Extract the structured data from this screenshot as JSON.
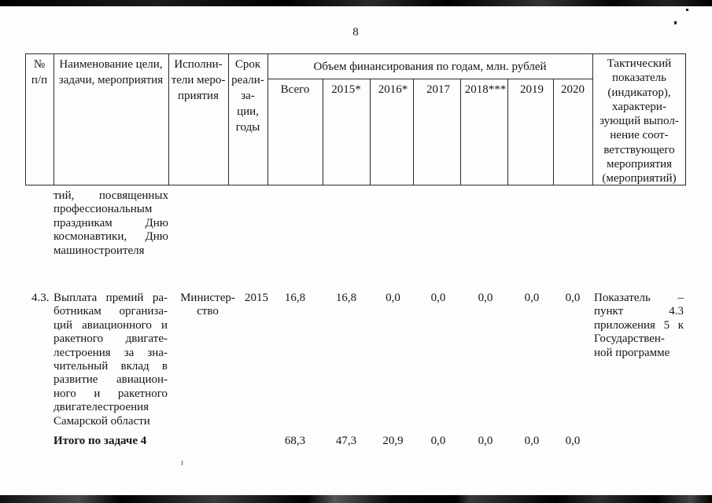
{
  "page": {
    "number": "8"
  },
  "table": {
    "header": {
      "num": "№\nп/п",
      "name": "Наименование цели,\nзадачи, мероприятия",
      "executor": "Исполни-\nтели меро-\nприятия",
      "term": "Срок\nреали-\nза-\nции,\nгоды",
      "funding_title": "Объем финансирования по годам, млн. рублей",
      "years": [
        "Всего",
        "2015*",
        "2016*",
        "2017",
        "2018***",
        "2019",
        "2020"
      ],
      "indicator": "Тактический\nпоказатель\n(индикатор),\nхарактери-\nзующий выпол-\nнение соот-\nветствующего\nмероприятия\n(мероприятий)"
    },
    "continuation": {
      "lines": [
        "тий, посвященных",
        "профессиональным",
        "праздникам Дню",
        "космонавтики, Дню",
        "машиностроителя"
      ]
    },
    "row_4_3": {
      "num": "4.3.",
      "name_lines": [
        "Выплата премий ра-",
        "ботникам организа-",
        "ций авиационного и",
        "ракетного двигате-",
        "лестроения за зна-",
        "чительный вклад в",
        "развитие авиацион-",
        "ного и ракетного",
        "двигателестроения",
        "Самарской области"
      ],
      "executor": "Министер-\nство",
      "term": "2015",
      "values": [
        "16,8",
        "16,8",
        "0,0",
        "0,0",
        "0,0",
        "0,0",
        "0,0"
      ],
      "indicator_lines": [
        "Показатель –",
        "пункт 4.3",
        "приложения 5 к",
        "Государствен-",
        "ной программе"
      ]
    },
    "total_row": {
      "label": "Итого по задаче 4",
      "values": [
        "68,3",
        "47,3",
        "20,9",
        "0,0",
        "0,0",
        "0,0",
        "0,0"
      ]
    }
  }
}
